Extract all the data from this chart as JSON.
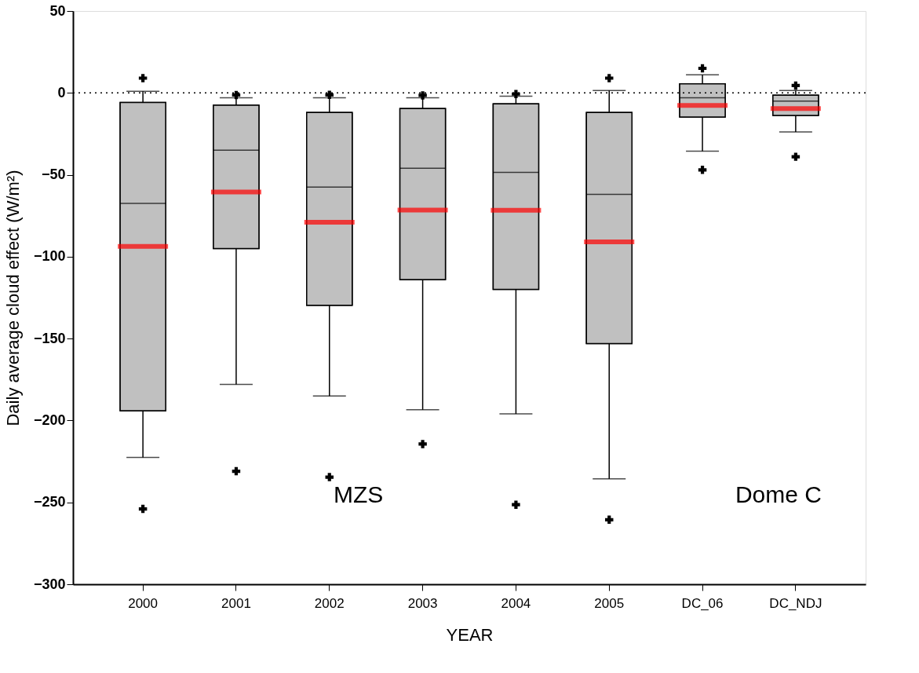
{
  "chart_data": {
    "type": "box",
    "xlabel": "YEAR",
    "ylabel": "Daily average cloud effect (W/m²)",
    "categories": [
      "2000",
      "2001",
      "2002",
      "2003",
      "2004",
      "2005",
      "DC_06",
      "DC_NDJ"
    ],
    "series": [
      {
        "color": "#c0c0c0",
        "boxes": [
          {
            "low": -222.6,
            "q1": -194,
            "median": -67.5,
            "q3": -5.8,
            "high": 1,
            "mean": -93.7,
            "outliers": [
              9,
              -254
            ]
          },
          {
            "low": -178,
            "q1": -95,
            "median": -35,
            "q3": -7.5,
            "high": -3,
            "mean": -60.5,
            "outliers": [
              -1.3,
              -231
            ]
          },
          {
            "low": -185,
            "q1": -129.7,
            "median": -57.5,
            "q3": -12,
            "high": -3,
            "mean": -79,
            "outliers": [
              -1.2,
              -234.6
            ]
          },
          {
            "low": -193.5,
            "q1": -114,
            "median": -46,
            "q3": -9.6,
            "high": -3,
            "mean": -71.6,
            "outliers": [
              -1.5,
              -214.4
            ]
          },
          {
            "low": -196,
            "q1": -120,
            "median": -48.5,
            "q3": -6.7,
            "high": -2,
            "mean": -71.7,
            "outliers": [
              -0.7,
              -251.4
            ]
          },
          {
            "low": -235.6,
            "q1": -153,
            "median": -62,
            "q3": -12,
            "high": 1.5,
            "mean": -91,
            "outliers": [
              9,
              -260.6
            ]
          },
          {
            "low": -35.6,
            "q1": -14.7,
            "median": -3,
            "q3": 5.5,
            "high": 11,
            "mean": -7.6,
            "outliers": [
              15,
              -47
            ]
          },
          {
            "low": -23.8,
            "q1": -13.8,
            "median": -5,
            "q3": -1.4,
            "high": 1.5,
            "mean": -9.6,
            "outliers": [
              4.5,
              -39
            ]
          }
        ]
      }
    ],
    "ylim": [
      -300,
      50
    ],
    "yticks": [
      -300,
      -250,
      -200,
      -150,
      -100,
      -50,
      0,
      50
    ],
    "ref_lines": [
      {
        "axis": "y",
        "value": 0,
        "line_style": "dotted",
        "color": "#000000"
      }
    ],
    "annotations": [
      "MZS",
      "Dome C"
    ],
    "grid": false
  }
}
